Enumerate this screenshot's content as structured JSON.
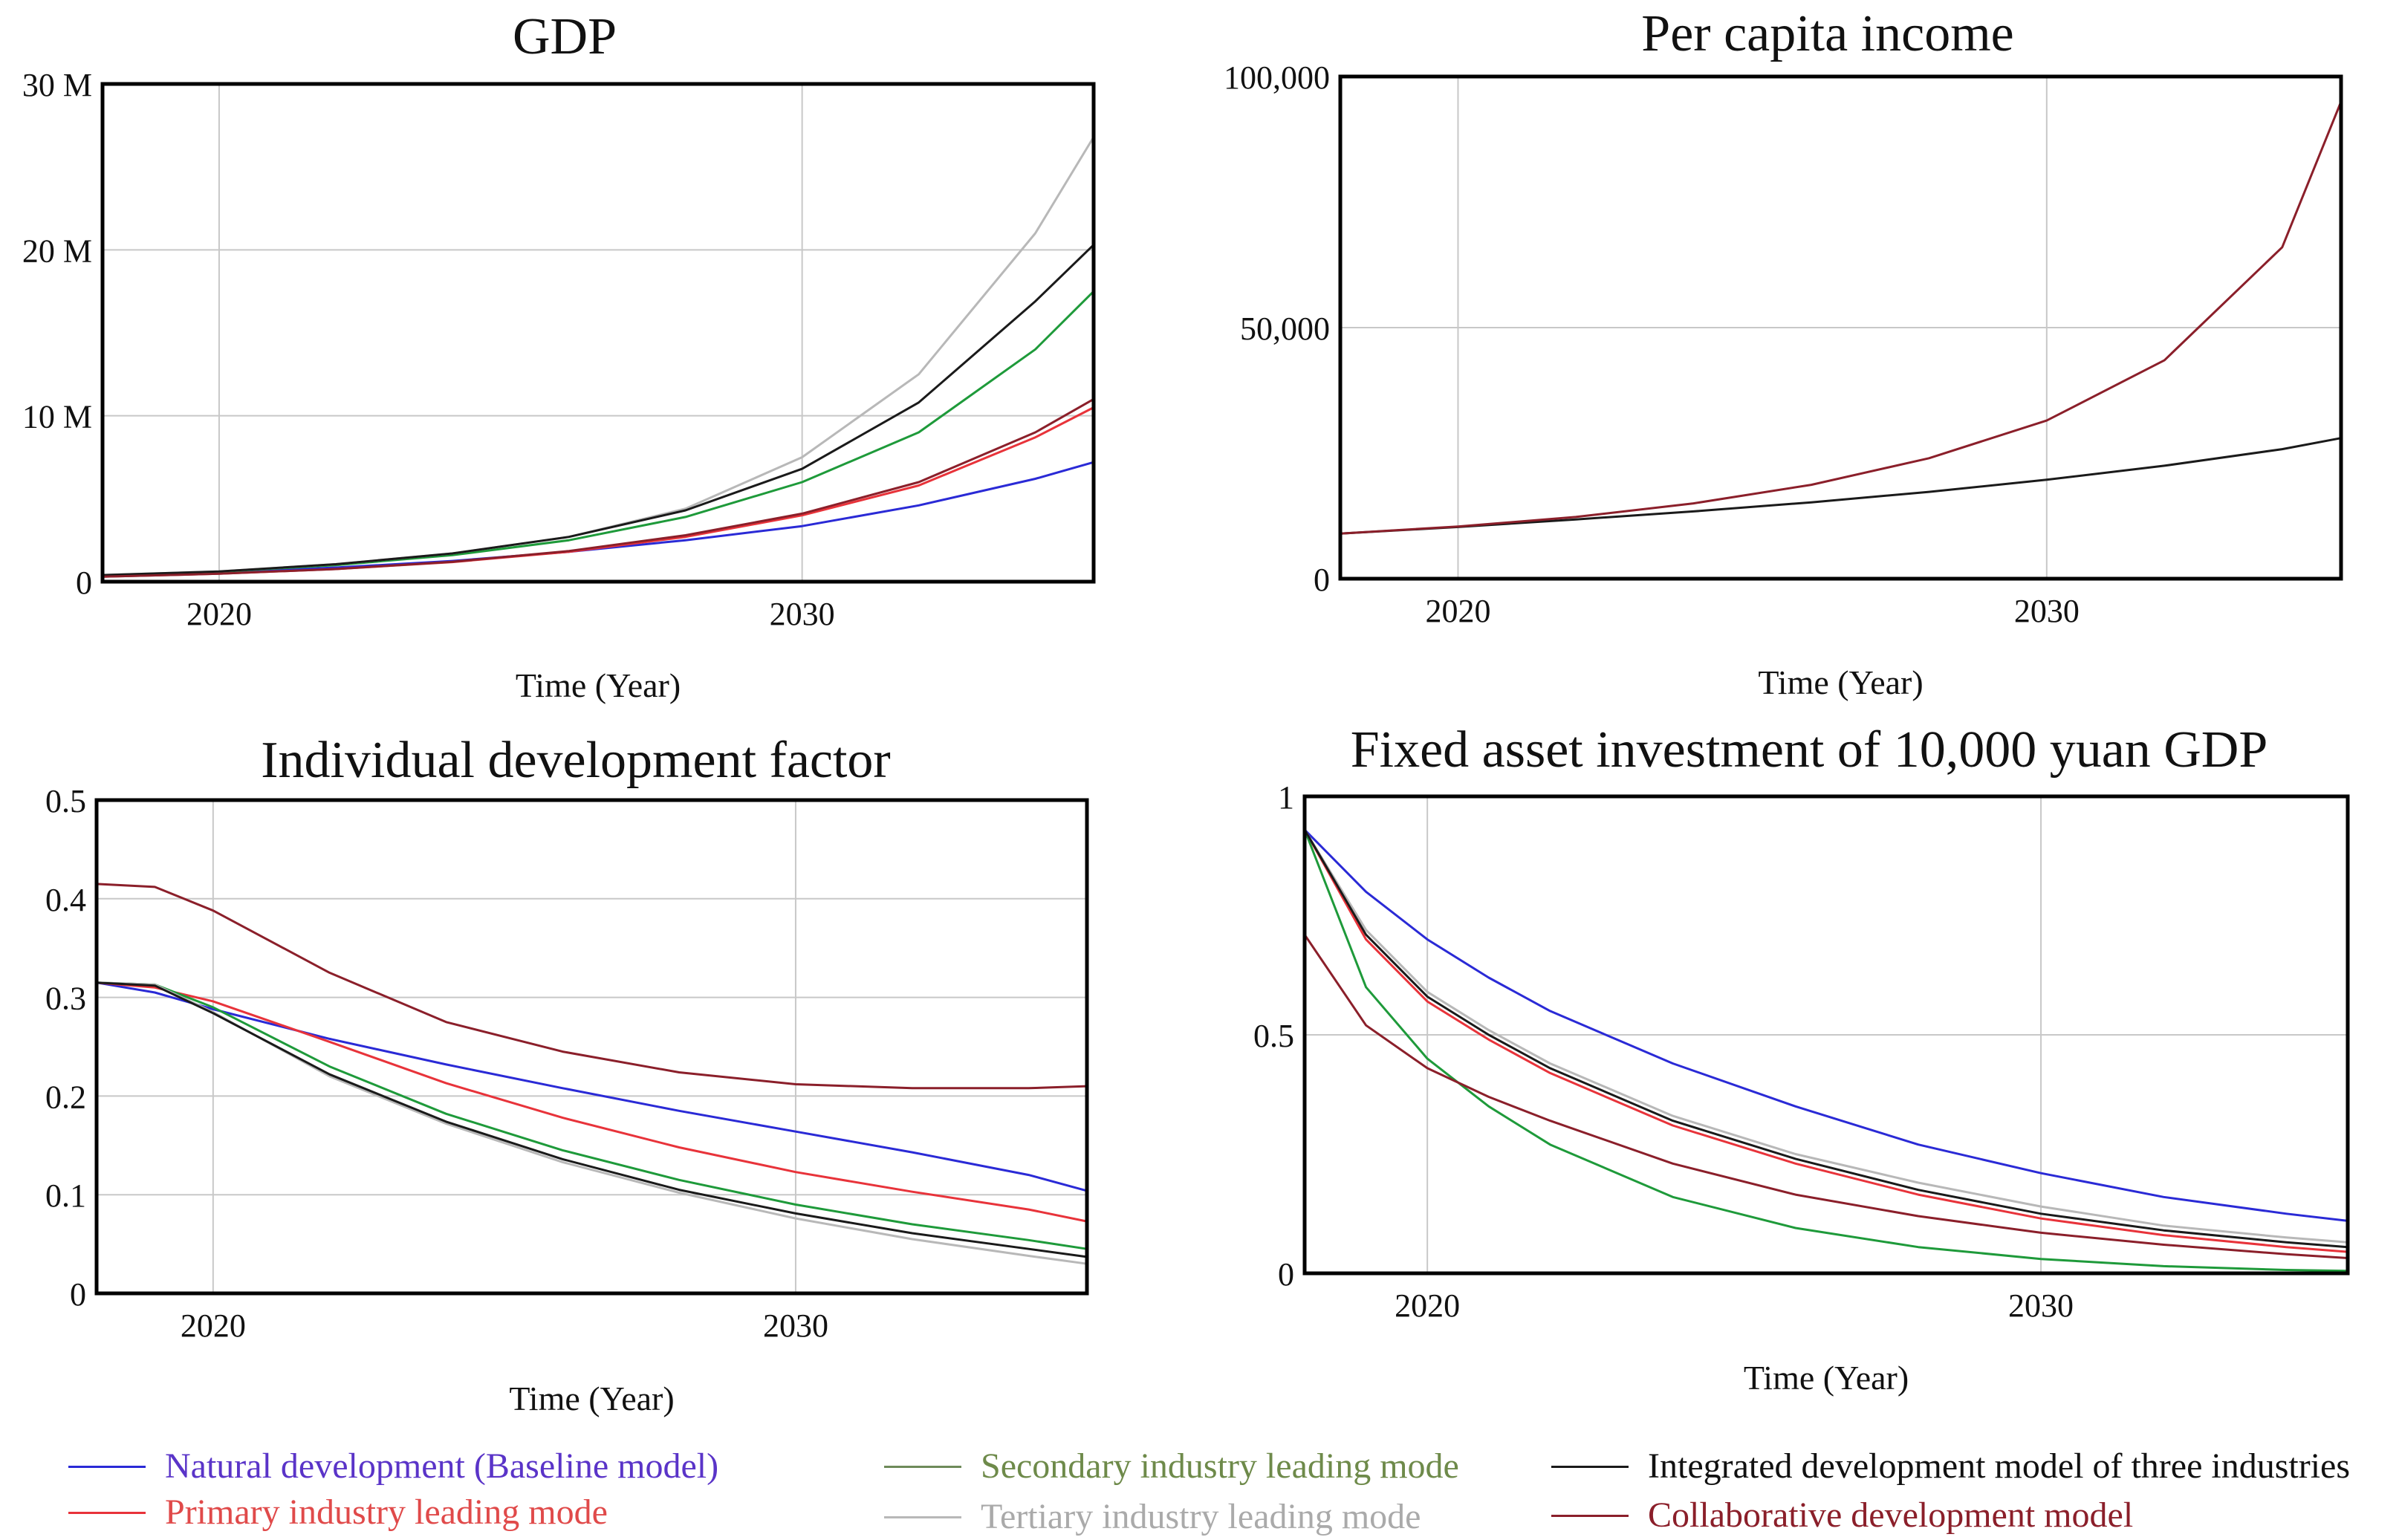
{
  "series_styles": [
    {
      "name": "Natural development (Baseline model)",
      "line_color": "#2a2ad6",
      "text_color": "#5a34c8"
    },
    {
      "name": "Primary industry leading mode",
      "line_color": "#e8333a",
      "text_color": "#e04a4a"
    },
    {
      "name": "Secondary industry leading mode",
      "line_color": "#1e9a3a",
      "legend_line_color": "#6e8a5a",
      "text_color": "#6e8a4a"
    },
    {
      "name": "Tertiary industry leading mode",
      "line_color": "#b8b8b8",
      "text_color": "#aaaaaa"
    },
    {
      "name": "Integrated development model of three industries",
      "line_color": "#1a1a1a",
      "text_color": "#111111"
    },
    {
      "name": "Collaborative development model",
      "line_color": "#8b1f2a",
      "text_color": "#8b1f2a"
    }
  ],
  "legend": {
    "items": [
      "Natural development (Baseline model)",
      "Primary industry leading mode",
      "Secondary industry leading mode",
      "Tertiary industry leading mode",
      "Integrated development model of three industries",
      "Collaborative development model"
    ]
  },
  "chart_data": [
    {
      "type": "line",
      "title": "GDP",
      "xlabel": "Time (Year)",
      "ylabel": "",
      "xlim": [
        2018,
        2035
      ],
      "ylim": [
        0,
        30000000
      ],
      "x_ticks": [
        2020,
        2030
      ],
      "y_ticks": [
        0,
        10000000,
        20000000,
        30000000
      ],
      "y_tick_labels": [
        "0",
        "10 M",
        "20 M",
        "30 M"
      ],
      "grid": true,
      "x": [
        2018,
        2020,
        2022,
        2024,
        2026,
        2028,
        2030,
        2032,
        2034,
        2035
      ],
      "series": [
        {
          "name": "Natural development (Baseline model)",
          "values": [
            350000,
            550000,
            850000,
            1250000,
            1800000,
            2500000,
            3350000,
            4600000,
            6200000,
            7200000
          ]
        },
        {
          "name": "Primary industry leading mode",
          "values": [
            300000,
            480000,
            760000,
            1180000,
            1800000,
            2700000,
            4000000,
            5800000,
            8700000,
            10500000
          ]
        },
        {
          "name": "Secondary industry leading mode",
          "values": [
            380000,
            600000,
            1000000,
            1600000,
            2500000,
            3900000,
            6000000,
            9000000,
            14000000,
            17500000
          ]
        },
        {
          "name": "Tertiary industry leading mode",
          "values": [
            400000,
            620000,
            1050000,
            1700000,
            2700000,
            4400000,
            7500000,
            12500000,
            21000000,
            26800000
          ]
        },
        {
          "name": "Integrated development model of three industries",
          "values": [
            400000,
            620000,
            1050000,
            1700000,
            2700000,
            4300000,
            6800000,
            10800000,
            16900000,
            20300000
          ]
        },
        {
          "name": "Collaborative development model",
          "values": [
            300000,
            480000,
            760000,
            1200000,
            1850000,
            2800000,
            4100000,
            6000000,
            9000000,
            11000000
          ]
        }
      ]
    },
    {
      "type": "line",
      "title": "Per capita income",
      "xlabel": "Time (Year)",
      "ylabel": "",
      "xlim": [
        2018,
        2035
      ],
      "ylim": [
        0,
        100000
      ],
      "x_ticks": [
        2020,
        2030
      ],
      "y_ticks": [
        0,
        50000,
        100000
      ],
      "y_tick_labels": [
        "0",
        "50,000",
        "100,000"
      ],
      "grid": true,
      "x": [
        2018,
        2020,
        2022,
        2024,
        2026,
        2028,
        2030,
        2032,
        2034,
        2035
      ],
      "series": [
        {
          "name": "Integrated development model of three industries",
          "values": [
            9000,
            10300,
            11800,
            13400,
            15200,
            17300,
            19700,
            22500,
            25800,
            28000
          ]
        },
        {
          "name": "Collaborative development model",
          "values": [
            9000,
            10400,
            12300,
            15000,
            18700,
            24000,
            31500,
            43500,
            66000,
            95000
          ]
        }
      ]
    },
    {
      "type": "line",
      "title": "Individual development factor",
      "xlabel": "Time (Year)",
      "ylabel": "",
      "xlim": [
        2018,
        2035
      ],
      "ylim": [
        0,
        0.5
      ],
      "x_ticks": [
        2020,
        2030
      ],
      "y_ticks": [
        0,
        0.1,
        0.2,
        0.3,
        0.4,
        0.5
      ],
      "y_tick_labels": [
        "0",
        "0.1",
        "0.2",
        "0.3",
        "0.4",
        "0.5"
      ],
      "grid": true,
      "x": [
        2018,
        2019,
        2020,
        2022,
        2024,
        2026,
        2028,
        2030,
        2032,
        2034,
        2035
      ],
      "series": [
        {
          "name": "Natural development (Baseline model)",
          "values": [
            0.315,
            0.305,
            0.288,
            0.258,
            0.232,
            0.208,
            0.185,
            0.164,
            0.143,
            0.12,
            0.104
          ]
        },
        {
          "name": "Primary industry leading mode",
          "values": [
            0.315,
            0.31,
            0.296,
            0.255,
            0.213,
            0.178,
            0.148,
            0.123,
            0.103,
            0.085,
            0.073
          ]
        },
        {
          "name": "Secondary industry leading mode",
          "values": [
            0.315,
            0.313,
            0.29,
            0.23,
            0.182,
            0.145,
            0.115,
            0.09,
            0.07,
            0.054,
            0.045
          ]
        },
        {
          "name": "Tertiary industry leading mode",
          "values": [
            0.315,
            0.313,
            0.285,
            0.22,
            0.172,
            0.133,
            0.102,
            0.076,
            0.055,
            0.038,
            0.03
          ]
        },
        {
          "name": "Integrated development model of three industries",
          "values": [
            0.315,
            0.312,
            0.284,
            0.222,
            0.174,
            0.136,
            0.105,
            0.081,
            0.061,
            0.045,
            0.037
          ]
        },
        {
          "name": "Collaborative development model",
          "values": [
            0.415,
            0.412,
            0.388,
            0.325,
            0.275,
            0.245,
            0.224,
            0.212,
            0.208,
            0.208,
            0.21
          ]
        }
      ]
    },
    {
      "type": "line",
      "title": "Fixed asset investment of 10,000 yuan GDP",
      "xlabel": "Time (Year)",
      "ylabel": "",
      "xlim": [
        2018,
        2035
      ],
      "ylim": [
        0,
        1
      ],
      "x_ticks": [
        2020,
        2030
      ],
      "y_ticks": [
        0,
        0.5,
        1
      ],
      "y_tick_labels": [
        "0",
        "0.5",
        "1"
      ],
      "grid": true,
      "x": [
        2018,
        2019,
        2020,
        2021,
        2022,
        2024,
        2026,
        2028,
        2030,
        2032,
        2034,
        2035
      ],
      "series": [
        {
          "name": "Natural development (Baseline model)",
          "values": [
            0.93,
            0.8,
            0.7,
            0.62,
            0.55,
            0.44,
            0.35,
            0.27,
            0.21,
            0.16,
            0.125,
            0.11
          ]
        },
        {
          "name": "Primary industry leading mode",
          "values": [
            0.93,
            0.7,
            0.57,
            0.49,
            0.42,
            0.31,
            0.23,
            0.165,
            0.115,
            0.08,
            0.055,
            0.045
          ]
        },
        {
          "name": "Secondary industry leading mode",
          "values": [
            0.93,
            0.6,
            0.45,
            0.35,
            0.27,
            0.16,
            0.095,
            0.055,
            0.03,
            0.015,
            0.007,
            0.005
          ]
        },
        {
          "name": "Tertiary industry leading mode",
          "values": [
            0.93,
            0.72,
            0.59,
            0.51,
            0.44,
            0.33,
            0.25,
            0.19,
            0.14,
            0.1,
            0.075,
            0.065
          ]
        },
        {
          "name": "Integrated development model of three industries",
          "values": [
            0.93,
            0.71,
            0.58,
            0.5,
            0.43,
            0.32,
            0.24,
            0.175,
            0.125,
            0.09,
            0.065,
            0.055
          ]
        },
        {
          "name": "Collaborative development model",
          "values": [
            0.71,
            0.52,
            0.43,
            0.37,
            0.32,
            0.23,
            0.165,
            0.12,
            0.085,
            0.06,
            0.04,
            0.032
          ]
        }
      ]
    }
  ]
}
